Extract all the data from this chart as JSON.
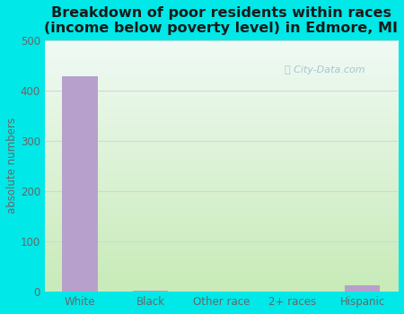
{
  "title": "Breakdown of poor residents within races\n(income below poverty level) in Edmore, MI",
  "categories": [
    "White",
    "Black",
    "Other race",
    "2+ races",
    "Hispanic"
  ],
  "values": [
    428,
    2,
    0,
    0,
    13
  ],
  "bar_color": "#b8a0cc",
  "ylabel": "absolute numbers",
  "ylim": [
    0,
    500
  ],
  "yticks": [
    0,
    100,
    200,
    300,
    400,
    500
  ],
  "background_color": "#00e8e8",
  "plot_bg_top": "#f0faf5",
  "plot_bg_bottom": "#c8ebb8",
  "grid_color": "#ccddcc",
  "title_fontsize": 11.5,
  "axis_label_fontsize": 8.5,
  "tick_fontsize": 8.5,
  "tick_color": "#666666",
  "watermark": "City-Data.com"
}
